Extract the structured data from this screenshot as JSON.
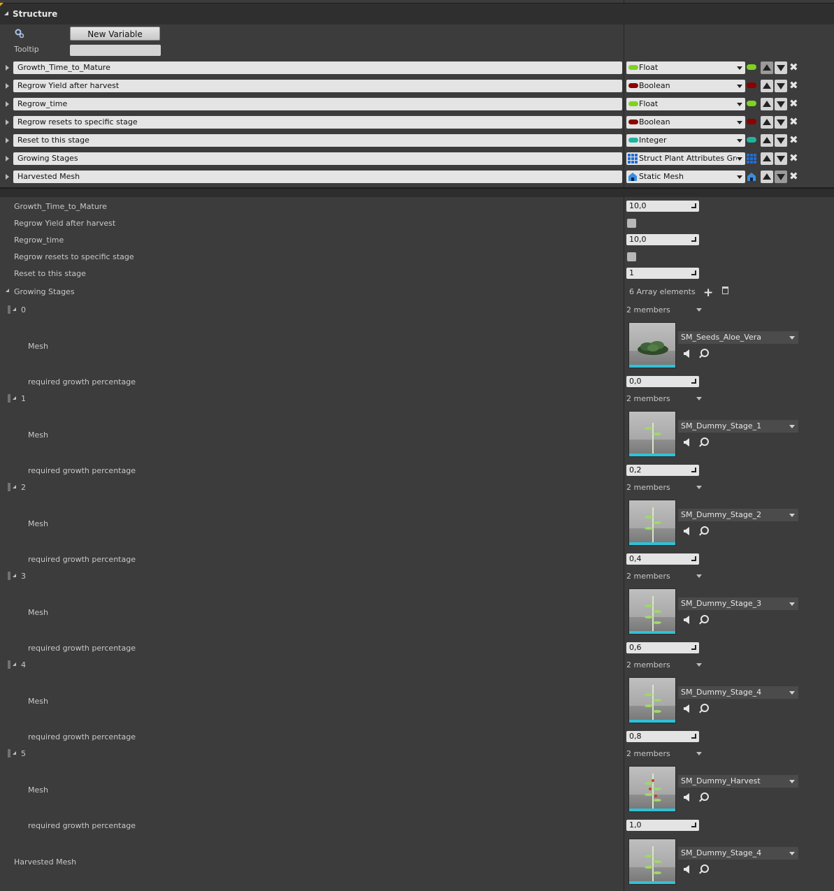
{
  "panel": {
    "title": "Structure"
  },
  "toolbar": {
    "new_variable_label": "New Variable",
    "tooltip_label": "Tooltip",
    "tooltip_value": ""
  },
  "variables": [
    {
      "name": "Growth_Time_to_Mature",
      "type": "Float",
      "color": "#7ed321"
    },
    {
      "name": "Regrow Yield after harvest",
      "type": "Boolean",
      "color": "#8b0000"
    },
    {
      "name": "Regrow_time",
      "type": "Float",
      "color": "#7ed321"
    },
    {
      "name": "Regrow resets to specific stage",
      "type": "Boolean",
      "color": "#8b0000"
    },
    {
      "name": "Reset to this stage",
      "type": "Integer",
      "color": "#20b2a0"
    },
    {
      "name": "Growing Stages",
      "type": "Struct Plant Attributes Growing Stages",
      "color": "#1e6fd6",
      "icon": "struct-grid-icon"
    },
    {
      "name": "Harvested Mesh",
      "type": "Static Mesh",
      "color": "#3a8ee0",
      "icon": "static-mesh-icon"
    }
  ],
  "details": {
    "growth_time_label": "Growth_Time_to_Mature",
    "growth_time_value": "10,0",
    "regrow_yield_label": "Regrow Yield after harvest",
    "regrow_time_label": "Regrow_time",
    "regrow_time_value": "10,0",
    "regrow_resets_label": "Regrow resets to specific stage",
    "reset_stage_label": "Reset to this stage",
    "reset_stage_value": "1",
    "growing_stages_label": "Growing Stages",
    "array_count": "6 Array elements",
    "harvested_mesh_label": "Harvested Mesh",
    "harvested_mesh_asset": "SM_Dummy_Stage_4",
    "mesh_label": "Mesh",
    "pct_label": "required growth percentage",
    "members_label": "2 members"
  },
  "stages": [
    {
      "index": "0",
      "asset": "SM_Seeds_Aloe_Vera",
      "pct": "0,0"
    },
    {
      "index": "1",
      "asset": "SM_Dummy_Stage_1",
      "pct": "0,2"
    },
    {
      "index": "2",
      "asset": "SM_Dummy_Stage_2",
      "pct": "0,4"
    },
    {
      "index": "3",
      "asset": "SM_Dummy_Stage_3",
      "pct": "0,6"
    },
    {
      "index": "4",
      "asset": "SM_Dummy_Stage_4",
      "pct": "0,8"
    },
    {
      "index": "5",
      "asset": "SM_Dummy_Harvest",
      "pct": "1,0"
    }
  ]
}
